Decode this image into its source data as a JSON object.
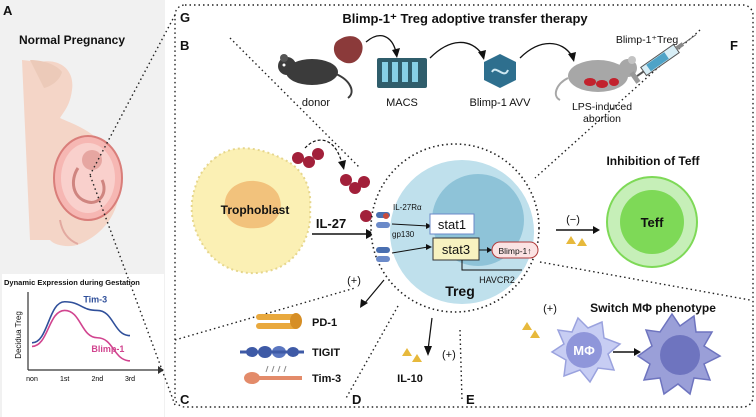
{
  "panel_letters": {
    "a": "A",
    "b": "B",
    "c": "C",
    "d": "D",
    "e": "E",
    "f": "F",
    "g": "G"
  },
  "left_panel": {
    "title": "Normal Pregnancy",
    "chart_title": "Dynamic Expression during Gestation",
    "ylabel": "Decidua Treg",
    "x_ticks": [
      "non",
      "1st",
      "2nd",
      "3rd"
    ]
  },
  "chart_data": {
    "type": "line",
    "title": "Dynamic Expression during Gestation",
    "xlabel": "",
    "ylabel": "Decidua Treg",
    "categories": [
      "non",
      "1st",
      "2nd",
      "3rd"
    ],
    "series": [
      {
        "name": "Tim-3",
        "color": "#2f4f9a",
        "values": [
          0.35,
          0.92,
          0.8,
          0.45
        ]
      },
      {
        "name": "Blimp-1",
        "color": "#d1448f",
        "values": [
          0.3,
          0.8,
          0.42,
          0.1
        ]
      }
    ],
    "ylim": [
      0,
      1
    ]
  },
  "therapy": {
    "title": "Blimp-1⁺ Treg adoptive transfer therapy",
    "donor": "donor",
    "macs": "MACS",
    "avv": "Blimp-1 AVV",
    "abortion_line1": "LPS-induced",
    "abortion_line2": "abortion",
    "treg_label": "Blimp-1⁺Treg"
  },
  "center": {
    "trophoblast": "Trophoblast",
    "il27": "IL-27",
    "il27ra": "IL-27Rα",
    "gp130": "gp130",
    "stat1": "stat1",
    "stat3": "stat3",
    "blimp": "Blimp-1↑",
    "havcr2": "HAVCR2",
    "treg": "Treg"
  },
  "teff_panel": {
    "title": "Inhibition of Teff",
    "cell": "Teff",
    "sign": "(−)"
  },
  "mphi_panel": {
    "title": "Switch MΦ phenotype",
    "cell": "MΦ",
    "sign": "(+)"
  },
  "receptors": {
    "sign": "(+)",
    "pd1": "PD-1",
    "tigit": "TIGIT",
    "tim3": "Tim-3"
  },
  "il10": {
    "label": "IL-10",
    "sign": "(+)"
  },
  "colors": {
    "tim3_line": "#2f4f9a",
    "blimp_line": "#d1448f",
    "teff": "#7ed957",
    "treg": "#a8d8ee",
    "mphi": "#aaaee8"
  }
}
